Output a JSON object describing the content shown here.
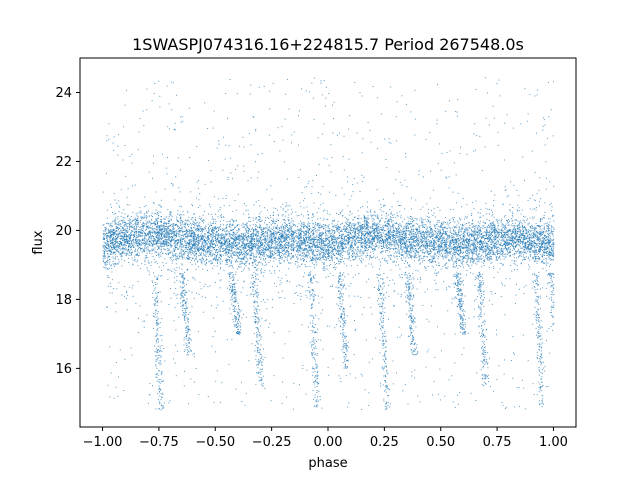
{
  "chart_data": {
    "type": "scatter",
    "title": "1SWASPJ074316.16+224815.7 Period 267548.0s",
    "xlabel": "phase",
    "ylabel": "flux",
    "xlim": [
      -1.1,
      1.1
    ],
    "ylim": [
      14.3,
      25.0
    ],
    "x_ticks": [
      -1.0,
      -0.75,
      -0.5,
      -0.25,
      0.0,
      0.25,
      0.5,
      0.75,
      1.0
    ],
    "x_tick_labels": [
      "−1.00",
      "−0.75",
      "−0.50",
      "−0.25",
      "0.00",
      "0.25",
      "0.50",
      "0.75",
      "1.00"
    ],
    "y_ticks": [
      16,
      18,
      20,
      22,
      24
    ],
    "y_tick_labels": [
      "16",
      "18",
      "20",
      "22",
      "24"
    ],
    "grid": false,
    "legend": "none",
    "point_color": "#1f77b4",
    "series": [
      {
        "values_summary": "dense band of points across phase -1 to 1, centered near flux 19.7 (range ~18.8 to 20.6); sparse outliers from ~14.8 to ~24.5; periodic dips/streaks repeating every 1.0 in phase",
        "band_center_flux": [
          [
            -1.0,
            19.6
          ],
          [
            -0.9,
            19.8
          ],
          [
            -0.8,
            19.9
          ],
          [
            -0.7,
            19.8
          ],
          [
            -0.6,
            19.7
          ],
          [
            -0.5,
            19.7
          ],
          [
            -0.4,
            19.6
          ],
          [
            -0.3,
            19.7
          ],
          [
            -0.2,
            19.8
          ],
          [
            -0.1,
            19.7
          ],
          [
            0.0,
            19.6
          ],
          [
            0.1,
            19.8
          ],
          [
            0.2,
            19.9
          ],
          [
            0.3,
            19.8
          ],
          [
            0.4,
            19.7
          ],
          [
            0.5,
            19.7
          ],
          [
            0.6,
            19.6
          ],
          [
            0.7,
            19.7
          ],
          [
            0.8,
            19.8
          ],
          [
            0.9,
            19.7
          ],
          [
            1.0,
            19.6
          ]
        ],
        "dip_streaks": [
          {
            "phase": -0.77,
            "flux_min": 14.8
          },
          {
            "phase": -0.65,
            "flux_min": 16.4
          },
          {
            "phase": -0.43,
            "flux_min": 17.0
          },
          {
            "phase": -0.33,
            "flux_min": 15.5
          },
          {
            "phase": -0.08,
            "flux_min": 14.9
          },
          {
            "phase": 0.05,
            "flux_min": 16.0
          },
          {
            "phase": 0.23,
            "flux_min": 14.8
          },
          {
            "phase": 0.35,
            "flux_min": 16.4
          },
          {
            "phase": 0.57,
            "flux_min": 17.0
          },
          {
            "phase": 0.67,
            "flux_min": 15.5
          },
          {
            "phase": 0.92,
            "flux_min": 14.9
          },
          {
            "phase": 0.99,
            "flux_min": 16.0
          }
        ]
      }
    ]
  }
}
